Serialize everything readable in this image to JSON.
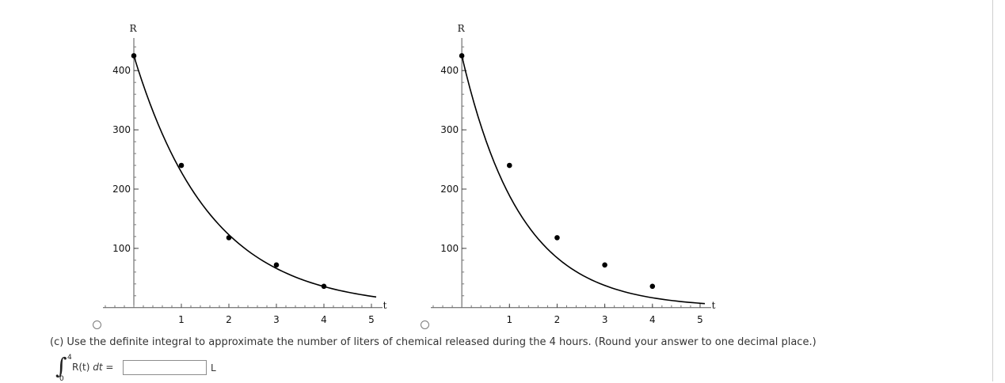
{
  "chart_data": [
    {
      "type": "scatter",
      "title": "",
      "xlabel": "t",
      "ylabel": "R",
      "xlim": [
        -0.65,
        5.1
      ],
      "ylim": [
        -3,
        455
      ],
      "x_ticks": [
        1,
        2,
        3,
        4,
        5
      ],
      "y_ticks": [
        100,
        200,
        300,
        400
      ],
      "points": {
        "x": [
          0,
          1,
          2,
          3,
          4
        ],
        "y": [
          425,
          240,
          118,
          72,
          36
        ]
      },
      "curve": {
        "x0": 0,
        "x1": 5.1,
        "samples": 60,
        "a": 425,
        "k": 0.62
      }
    },
    {
      "type": "scatter",
      "title": "",
      "xlabel": "t",
      "ylabel": "R",
      "xlim": [
        -0.65,
        5.1
      ],
      "ylim": [
        -3,
        455
      ],
      "x_ticks": [
        1,
        2,
        3,
        4,
        5
      ],
      "y_ticks": [
        100,
        200,
        300,
        400
      ],
      "points": {
        "x": [
          0,
          1,
          2,
          3,
          4
        ],
        "y": [
          425,
          240,
          118,
          72,
          36
        ]
      },
      "curve": {
        "x0": 0,
        "x1": 5.1,
        "samples": 60,
        "a": 425,
        "k": 0.81
      }
    }
  ],
  "question": {
    "text": "(c) Use the definite integral to approximate the number of liters of chemical released during the 4 hours. (Round your answer to one decimal place.)",
    "integral_sign": "∫",
    "upper_limit": "4",
    "lower_limit": "0",
    "integrand": "R(t)",
    "dt_label": "dt",
    "equals": "=",
    "answer_value": "",
    "unit": "L"
  }
}
